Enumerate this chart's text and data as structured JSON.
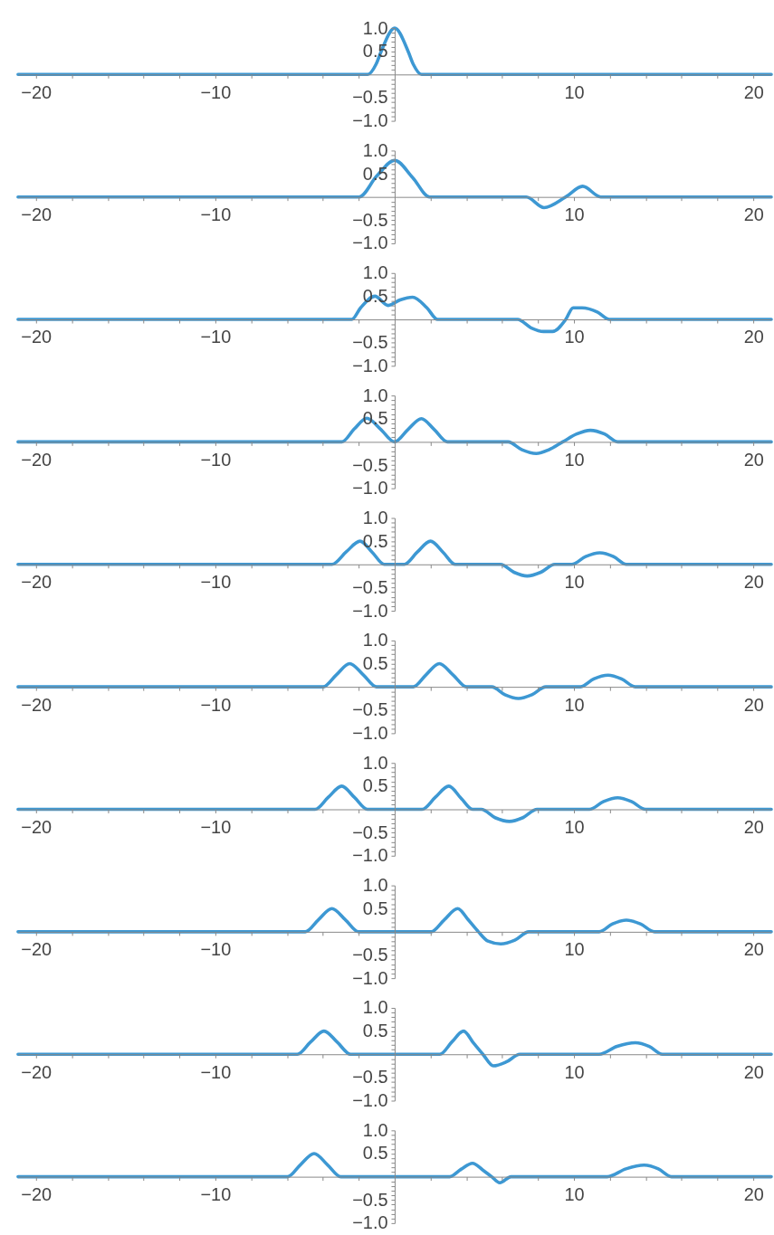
{
  "chart_data": [
    {
      "type": "line",
      "xlim": [
        -21,
        21
      ],
      "ylim": [
        -1,
        1
      ],
      "grid": false,
      "xticks": [
        {
          "value": -20,
          "label": "−20"
        },
        {
          "value": -18,
          "label": null
        },
        {
          "value": -16,
          "label": null
        },
        {
          "value": -14,
          "label": null
        },
        {
          "value": -12,
          "label": null
        },
        {
          "value": -10,
          "label": "−10"
        },
        {
          "value": -8,
          "label": null
        },
        {
          "value": -6,
          "label": null
        },
        {
          "value": -4,
          "label": null
        },
        {
          "value": -2,
          "label": null
        },
        {
          "value": 2,
          "label": null
        },
        {
          "value": 4,
          "label": null
        },
        {
          "value": 6,
          "label": null
        },
        {
          "value": 8,
          "label": null
        },
        {
          "value": 10,
          "label": "10"
        },
        {
          "value": 12,
          "label": null
        },
        {
          "value": 14,
          "label": null
        },
        {
          "value": 16,
          "label": null
        },
        {
          "value": 18,
          "label": null
        },
        {
          "value": 20,
          "label": "20"
        }
      ],
      "yticks": [
        {
          "value": -1,
          "label": "−1.0"
        },
        {
          "value": -0.9,
          "label": null
        },
        {
          "value": -0.8,
          "label": null
        },
        {
          "value": -0.7,
          "label": null
        },
        {
          "value": -0.6,
          "label": null
        },
        {
          "value": -0.5,
          "label": "−0.5"
        },
        {
          "value": -0.4,
          "label": null
        },
        {
          "value": -0.3,
          "label": null
        },
        {
          "value": -0.2,
          "label": null
        },
        {
          "value": -0.1,
          "label": null
        },
        {
          "value": 0.1,
          "label": null
        },
        {
          "value": 0.2,
          "label": null
        },
        {
          "value": 0.3,
          "label": null
        },
        {
          "value": 0.4,
          "label": null
        },
        {
          "value": 0.5,
          "label": "0.5"
        },
        {
          "value": 0.6,
          "label": null
        },
        {
          "value": 0.7,
          "label": null
        },
        {
          "value": 0.8,
          "label": null
        },
        {
          "value": 0.9,
          "label": null
        },
        {
          "value": 1,
          "label": "1.0"
        }
      ],
      "series": [
        {
          "color": "#3d98d3",
          "x": [
            -21,
            -1.5,
            -1.05,
            -0.75,
            0,
            0.75,
            1.05,
            1.5,
            21
          ],
          "values": [
            0,
            0,
            0.21,
            0.5,
            1,
            0.5,
            0.21,
            0,
            0
          ]
        }
      ]
    },
    {
      "type": "line",
      "xlim": [
        -21,
        21
      ],
      "ylim": [
        -1,
        1
      ],
      "grid": false,
      "xticks": [
        {
          "value": -20,
          "label": "−20"
        },
        {
          "value": -18,
          "label": null
        },
        {
          "value": -16,
          "label": null
        },
        {
          "value": -14,
          "label": null
        },
        {
          "value": -12,
          "label": null
        },
        {
          "value": -10,
          "label": "−10"
        },
        {
          "value": -8,
          "label": null
        },
        {
          "value": -6,
          "label": null
        },
        {
          "value": -4,
          "label": null
        },
        {
          "value": -2,
          "label": null
        },
        {
          "value": 2,
          "label": null
        },
        {
          "value": 4,
          "label": null
        },
        {
          "value": 6,
          "label": null
        },
        {
          "value": 8,
          "label": null
        },
        {
          "value": 10,
          "label": "10"
        },
        {
          "value": 12,
          "label": null
        },
        {
          "value": 14,
          "label": null
        },
        {
          "value": 16,
          "label": null
        },
        {
          "value": 18,
          "label": null
        },
        {
          "value": 20,
          "label": "20"
        }
      ],
      "yticks": [
        {
          "value": -1,
          "label": "−1.0"
        },
        {
          "value": -0.9,
          "label": null
        },
        {
          "value": -0.8,
          "label": null
        },
        {
          "value": -0.7,
          "label": null
        },
        {
          "value": -0.6,
          "label": null
        },
        {
          "value": -0.5,
          "label": "−0.5"
        },
        {
          "value": -0.4,
          "label": null
        },
        {
          "value": -0.3,
          "label": null
        },
        {
          "value": -0.2,
          "label": null
        },
        {
          "value": -0.1,
          "label": null
        },
        {
          "value": 0.1,
          "label": null
        },
        {
          "value": 0.2,
          "label": null
        },
        {
          "value": 0.3,
          "label": null
        },
        {
          "value": 0.4,
          "label": null
        },
        {
          "value": 0.5,
          "label": "0.5"
        },
        {
          "value": 0.6,
          "label": null
        },
        {
          "value": 0.7,
          "label": null
        },
        {
          "value": 0.8,
          "label": null
        },
        {
          "value": 0.9,
          "label": null
        },
        {
          "value": 1,
          "label": "1.0"
        }
      ],
      "series": [
        {
          "color": "#3d98d3",
          "x": [
            -21,
            -1.98,
            -1,
            0,
            1,
            1.95,
            7.34,
            8.33,
            9.54,
            10.48,
            11.49,
            21
          ],
          "values": [
            0,
            0,
            0.45,
            0.79,
            0.42,
            0,
            0,
            -0.23,
            0,
            0.23,
            0,
            0
          ]
        }
      ]
    },
    {
      "type": "line",
      "xlim": [
        -21,
        21
      ],
      "ylim": [
        -1,
        1
      ],
      "grid": false,
      "xticks": [
        {
          "value": -20,
          "label": "−20"
        },
        {
          "value": -18,
          "label": null
        },
        {
          "value": -16,
          "label": null
        },
        {
          "value": -14,
          "label": null
        },
        {
          "value": -12,
          "label": null
        },
        {
          "value": -10,
          "label": "−10"
        },
        {
          "value": -8,
          "label": null
        },
        {
          "value": -6,
          "label": null
        },
        {
          "value": -4,
          "label": null
        },
        {
          "value": -2,
          "label": null
        },
        {
          "value": 2,
          "label": null
        },
        {
          "value": 4,
          "label": null
        },
        {
          "value": 6,
          "label": null
        },
        {
          "value": 8,
          "label": null
        },
        {
          "value": 10,
          "label": "10"
        },
        {
          "value": 12,
          "label": null
        },
        {
          "value": 14,
          "label": null
        },
        {
          "value": 16,
          "label": null
        },
        {
          "value": 18,
          "label": null
        },
        {
          "value": 20,
          "label": "20"
        }
      ],
      "yticks": [
        {
          "value": -1,
          "label": "−1.0"
        },
        {
          "value": -0.9,
          "label": null
        },
        {
          "value": -0.8,
          "label": null
        },
        {
          "value": -0.7,
          "label": null
        },
        {
          "value": -0.6,
          "label": null
        },
        {
          "value": -0.5,
          "label": "−0.5"
        },
        {
          "value": -0.4,
          "label": null
        },
        {
          "value": -0.3,
          "label": null
        },
        {
          "value": -0.2,
          "label": null
        },
        {
          "value": -0.1,
          "label": null
        },
        {
          "value": 0.1,
          "label": null
        },
        {
          "value": 0.2,
          "label": null
        },
        {
          "value": 0.3,
          "label": null
        },
        {
          "value": 0.4,
          "label": null
        },
        {
          "value": 0.5,
          "label": "0.5"
        },
        {
          "value": 0.6,
          "label": null
        },
        {
          "value": 0.7,
          "label": null
        },
        {
          "value": 0.8,
          "label": null
        },
        {
          "value": 0.9,
          "label": null
        },
        {
          "value": 1,
          "label": "1.0"
        }
      ],
      "series": [
        {
          "color": "#3d98d3",
          "x": [
            -21,
            -2.39,
            -1.9,
            -1.1,
            -0.36,
            0.3,
            1.0,
            1.8,
            2.39,
            6.85,
            7.6,
            8.3,
            8.8,
            9.54,
            9.95,
            10.45,
            11.3,
            11.98,
            21
          ],
          "values": [
            0,
            0,
            0.25,
            0.5,
            0.3,
            0.42,
            0.48,
            0.25,
            0,
            0,
            -0.18,
            -0.26,
            -0.26,
            0,
            0.25,
            0.25,
            0.16,
            0,
            0
          ]
        }
      ]
    },
    {
      "type": "line",
      "xlim": [
        -21,
        21
      ],
      "ylim": [
        -1,
        1
      ],
      "grid": false,
      "xticks": [
        {
          "value": -20,
          "label": "−20"
        },
        {
          "value": -18,
          "label": null
        },
        {
          "value": -16,
          "label": null
        },
        {
          "value": -14,
          "label": null
        },
        {
          "value": -12,
          "label": null
        },
        {
          "value": -10,
          "label": "−10"
        },
        {
          "value": -8,
          "label": null
        },
        {
          "value": -6,
          "label": null
        },
        {
          "value": -4,
          "label": null
        },
        {
          "value": -2,
          "label": null
        },
        {
          "value": 2,
          "label": null
        },
        {
          "value": 4,
          "label": null
        },
        {
          "value": 6,
          "label": null
        },
        {
          "value": 8,
          "label": null
        },
        {
          "value": 10,
          "label": "10"
        },
        {
          "value": 12,
          "label": null
        },
        {
          "value": 14,
          "label": null
        },
        {
          "value": 16,
          "label": null
        },
        {
          "value": 18,
          "label": null
        },
        {
          "value": 20,
          "label": "20"
        }
      ],
      "yticks": [
        {
          "value": -1,
          "label": "−1.0"
        },
        {
          "value": -0.9,
          "label": null
        },
        {
          "value": -0.8,
          "label": null
        },
        {
          "value": -0.7,
          "label": null
        },
        {
          "value": -0.6,
          "label": null
        },
        {
          "value": -0.5,
          "label": "−0.5"
        },
        {
          "value": -0.4,
          "label": null
        },
        {
          "value": -0.3,
          "label": null
        },
        {
          "value": -0.2,
          "label": null
        },
        {
          "value": -0.1,
          "label": null
        },
        {
          "value": 0.1,
          "label": null
        },
        {
          "value": 0.2,
          "label": null
        },
        {
          "value": 0.3,
          "label": null
        },
        {
          "value": 0.4,
          "label": null
        },
        {
          "value": 0.5,
          "label": "0.5"
        },
        {
          "value": 0.6,
          "label": null
        },
        {
          "value": 0.7,
          "label": null
        },
        {
          "value": 0.8,
          "label": null
        },
        {
          "value": 0.9,
          "label": null
        },
        {
          "value": 1,
          "label": "1.0"
        }
      ],
      "series": [
        {
          "color": "#3d98d3",
          "x": [
            -21,
            -2.95,
            -2.25,
            -1.55,
            -0.8,
            0,
            0.75,
            1.49,
            2.2,
            2.94,
            6.32,
            7.1,
            7.89,
            8.6,
            9.37,
            10.15,
            10.91,
            11.7,
            12.43,
            21
          ],
          "values": [
            0,
            0,
            0.28,
            0.51,
            0.28,
            0,
            0.27,
            0.5,
            0.27,
            0,
            0,
            -0.17,
            -0.25,
            -0.17,
            0,
            0.17,
            0.25,
            0.17,
            0,
            0
          ]
        }
      ]
    },
    {
      "type": "line",
      "xlim": [
        -21,
        21
      ],
      "ylim": [
        -1,
        1
      ],
      "grid": false,
      "xticks": [
        {
          "value": -20,
          "label": "−20"
        },
        {
          "value": -18,
          "label": null
        },
        {
          "value": -16,
          "label": null
        },
        {
          "value": -14,
          "label": null
        },
        {
          "value": -12,
          "label": null
        },
        {
          "value": -10,
          "label": "−10"
        },
        {
          "value": -8,
          "label": null
        },
        {
          "value": -6,
          "label": null
        },
        {
          "value": -4,
          "label": null
        },
        {
          "value": -2,
          "label": null
        },
        {
          "value": 2,
          "label": null
        },
        {
          "value": 4,
          "label": null
        },
        {
          "value": 6,
          "label": null
        },
        {
          "value": 8,
          "label": null
        },
        {
          "value": 10,
          "label": "10"
        },
        {
          "value": 12,
          "label": null
        },
        {
          "value": 14,
          "label": null
        },
        {
          "value": 16,
          "label": null
        },
        {
          "value": 18,
          "label": null
        },
        {
          "value": 20,
          "label": "20"
        }
      ],
      "yticks": [
        {
          "value": -1,
          "label": "−1.0"
        },
        {
          "value": -0.9,
          "label": null
        },
        {
          "value": -0.8,
          "label": null
        },
        {
          "value": -0.7,
          "label": null
        },
        {
          "value": -0.6,
          "label": null
        },
        {
          "value": -0.5,
          "label": "−0.5"
        },
        {
          "value": -0.4,
          "label": null
        },
        {
          "value": -0.3,
          "label": null
        },
        {
          "value": -0.2,
          "label": null
        },
        {
          "value": -0.1,
          "label": null
        },
        {
          "value": 0.1,
          "label": null
        },
        {
          "value": 0.2,
          "label": null
        },
        {
          "value": 0.3,
          "label": null
        },
        {
          "value": 0.4,
          "label": null
        },
        {
          "value": 0.5,
          "label": "0.5"
        },
        {
          "value": 0.6,
          "label": null
        },
        {
          "value": 0.7,
          "label": null
        },
        {
          "value": 0.8,
          "label": null
        },
        {
          "value": 0.9,
          "label": null
        },
        {
          "value": 1,
          "label": "1.0"
        }
      ],
      "series": [
        {
          "color": "#3d98d3",
          "x": [
            -21,
            -3.5,
            -2.7,
            -1.93,
            -1.25,
            -0.58,
            0.54,
            1.25,
            2.0,
            2.7,
            3.38,
            5.9,
            6.65,
            7.39,
            8.15,
            8.93,
            9.87,
            10.65,
            11.44,
            12.2,
            12.92,
            21
          ],
          "values": [
            0,
            0,
            0.27,
            0.5,
            0.26,
            0,
            0,
            0.26,
            0.5,
            0.26,
            0,
            0,
            -0.17,
            -0.25,
            -0.17,
            0,
            0,
            0.17,
            0.25,
            0.17,
            0,
            0
          ]
        }
      ]
    },
    {
      "type": "line",
      "xlim": [
        -21,
        21
      ],
      "ylim": [
        -1,
        1
      ],
      "grid": false,
      "xticks": [
        {
          "value": -20,
          "label": "−20"
        },
        {
          "value": -18,
          "label": null
        },
        {
          "value": -16,
          "label": null
        },
        {
          "value": -14,
          "label": null
        },
        {
          "value": -12,
          "label": null
        },
        {
          "value": -10,
          "label": "−10"
        },
        {
          "value": -8,
          "label": null
        },
        {
          "value": -6,
          "label": null
        },
        {
          "value": -4,
          "label": null
        },
        {
          "value": -2,
          "label": null
        },
        {
          "value": 2,
          "label": null
        },
        {
          "value": 4,
          "label": null
        },
        {
          "value": 6,
          "label": null
        },
        {
          "value": 8,
          "label": null
        },
        {
          "value": 10,
          "label": "10"
        },
        {
          "value": 12,
          "label": null
        },
        {
          "value": 14,
          "label": null
        },
        {
          "value": 16,
          "label": null
        },
        {
          "value": 18,
          "label": null
        },
        {
          "value": 20,
          "label": "20"
        }
      ],
      "yticks": [
        {
          "value": -1,
          "label": "−1.0"
        },
        {
          "value": -0.9,
          "label": null
        },
        {
          "value": -0.8,
          "label": null
        },
        {
          "value": -0.7,
          "label": null
        },
        {
          "value": -0.6,
          "label": null
        },
        {
          "value": -0.5,
          "label": "−0.5"
        },
        {
          "value": -0.4,
          "label": null
        },
        {
          "value": -0.3,
          "label": null
        },
        {
          "value": -0.2,
          "label": null
        },
        {
          "value": -0.1,
          "label": null
        },
        {
          "value": 0.1,
          "label": null
        },
        {
          "value": 0.2,
          "label": null
        },
        {
          "value": 0.3,
          "label": null
        },
        {
          "value": 0.4,
          "label": null
        },
        {
          "value": 0.5,
          "label": "0.5"
        },
        {
          "value": 0.6,
          "label": null
        },
        {
          "value": 0.7,
          "label": null
        },
        {
          "value": 0.8,
          "label": null
        },
        {
          "value": 0.9,
          "label": null
        },
        {
          "value": 1,
          "label": "1.0"
        }
      ],
      "series": [
        {
          "color": "#3d98d3",
          "x": [
            -21,
            -3.99,
            -3.25,
            -2.51,
            -1.75,
            -1.02,
            1.04,
            1.75,
            2.49,
            3.25,
            4.01,
            5.41,
            6.15,
            6.9,
            7.65,
            8.43,
            10.36,
            11.1,
            11.9,
            12.65,
            13.42,
            21
          ],
          "values": [
            0,
            0,
            0.26,
            0.5,
            0.26,
            0,
            0,
            0.26,
            0.5,
            0.26,
            0,
            0,
            -0.17,
            -0.25,
            -0.17,
            0,
            0,
            0.17,
            0.25,
            0.17,
            0,
            0
          ]
        }
      ]
    },
    {
      "type": "line",
      "xlim": [
        -21,
        21
      ],
      "ylim": [
        -1,
        1
      ],
      "grid": false,
      "xticks": [
        {
          "value": -20,
          "label": "−20"
        },
        {
          "value": -18,
          "label": null
        },
        {
          "value": -16,
          "label": null
        },
        {
          "value": -14,
          "label": null
        },
        {
          "value": -12,
          "label": null
        },
        {
          "value": -10,
          "label": "−10"
        },
        {
          "value": -8,
          "label": null
        },
        {
          "value": -6,
          "label": null
        },
        {
          "value": -4,
          "label": null
        },
        {
          "value": -2,
          "label": null
        },
        {
          "value": 2,
          "label": null
        },
        {
          "value": 4,
          "label": null
        },
        {
          "value": 6,
          "label": null
        },
        {
          "value": 8,
          "label": null
        },
        {
          "value": 10,
          "label": "10"
        },
        {
          "value": 12,
          "label": null
        },
        {
          "value": 14,
          "label": null
        },
        {
          "value": 16,
          "label": null
        },
        {
          "value": 18,
          "label": null
        },
        {
          "value": 20,
          "label": "20"
        }
      ],
      "yticks": [
        {
          "value": -1,
          "label": "−1.0"
        },
        {
          "value": -0.9,
          "label": null
        },
        {
          "value": -0.8,
          "label": null
        },
        {
          "value": -0.7,
          "label": null
        },
        {
          "value": -0.6,
          "label": null
        },
        {
          "value": -0.5,
          "label": "−0.5"
        },
        {
          "value": -0.4,
          "label": null
        },
        {
          "value": -0.3,
          "label": null
        },
        {
          "value": -0.2,
          "label": null
        },
        {
          "value": -0.1,
          "label": null
        },
        {
          "value": 0.1,
          "label": null
        },
        {
          "value": 0.2,
          "label": null
        },
        {
          "value": 0.3,
          "label": null
        },
        {
          "value": 0.4,
          "label": null
        },
        {
          "value": 0.5,
          "label": "0.5"
        },
        {
          "value": 0.6,
          "label": null
        },
        {
          "value": 0.7,
          "label": null
        },
        {
          "value": 0.8,
          "label": null
        },
        {
          "value": 0.9,
          "label": null
        },
        {
          "value": 1,
          "label": "1.0"
        }
      ],
      "series": [
        {
          "color": "#3d98d3",
          "x": [
            -21,
            -4.44,
            -3.7,
            -2.95,
            -2.25,
            -1.52,
            1.53,
            2.27,
            3.02,
            3.7,
            4.34,
            4.83,
            5.6,
            6.4,
            7.15,
            7.94,
            10.86,
            11.65,
            12.43,
            13.2,
            13.99,
            21
          ],
          "values": [
            0,
            0,
            0.26,
            0.5,
            0.26,
            0,
            0,
            0.26,
            0.5,
            0.24,
            0,
            0,
            -0.18,
            -0.26,
            -0.18,
            0,
            0,
            0.17,
            0.25,
            0.17,
            0,
            0
          ]
        }
      ]
    },
    {
      "type": "line",
      "xlim": [
        -21,
        21
      ],
      "ylim": [
        -1,
        1
      ],
      "grid": false,
      "xticks": [
        {
          "value": -20,
          "label": "−20"
        },
        {
          "value": -18,
          "label": null
        },
        {
          "value": -16,
          "label": null
        },
        {
          "value": -14,
          "label": null
        },
        {
          "value": -12,
          "label": null
        },
        {
          "value": -10,
          "label": "−10"
        },
        {
          "value": -8,
          "label": null
        },
        {
          "value": -6,
          "label": null
        },
        {
          "value": -4,
          "label": null
        },
        {
          "value": -2,
          "label": null
        },
        {
          "value": 2,
          "label": null
        },
        {
          "value": 4,
          "label": null
        },
        {
          "value": 6,
          "label": null
        },
        {
          "value": 8,
          "label": null
        },
        {
          "value": 10,
          "label": "10"
        },
        {
          "value": 12,
          "label": null
        },
        {
          "value": 14,
          "label": null
        },
        {
          "value": 16,
          "label": null
        },
        {
          "value": 18,
          "label": null
        },
        {
          "value": 20,
          "label": "20"
        }
      ],
      "yticks": [
        {
          "value": -1,
          "label": "−1.0"
        },
        {
          "value": -0.9,
          "label": null
        },
        {
          "value": -0.8,
          "label": null
        },
        {
          "value": -0.7,
          "label": null
        },
        {
          "value": -0.6,
          "label": null
        },
        {
          "value": -0.5,
          "label": "−0.5"
        },
        {
          "value": -0.4,
          "label": null
        },
        {
          "value": -0.3,
          "label": null
        },
        {
          "value": -0.2,
          "label": null
        },
        {
          "value": -0.1,
          "label": null
        },
        {
          "value": 0.1,
          "label": null
        },
        {
          "value": 0.2,
          "label": null
        },
        {
          "value": 0.3,
          "label": null
        },
        {
          "value": 0.4,
          "label": null
        },
        {
          "value": 0.5,
          "label": "0.5"
        },
        {
          "value": 0.6,
          "label": null
        },
        {
          "value": 0.7,
          "label": null
        },
        {
          "value": 0.8,
          "label": null
        },
        {
          "value": 0.9,
          "label": null
        },
        {
          "value": 1,
          "label": "1.0"
        }
      ],
      "series": [
        {
          "color": "#3d98d3",
          "x": [
            -21,
            -4.98,
            -4.25,
            -3.5,
            -2.75,
            -2.01,
            2.03,
            2.77,
            3.51,
            4.1,
            4.67,
            5.2,
            5.91,
            6.7,
            7.48,
            11.4,
            12.15,
            12.92,
            13.7,
            14.49,
            21
          ],
          "values": [
            0,
            0,
            0.26,
            0.5,
            0.26,
            0,
            0,
            0.26,
            0.5,
            0.26,
            0,
            -0.2,
            -0.26,
            -0.18,
            0,
            0,
            0.17,
            0.25,
            0.17,
            0,
            0
          ]
        }
      ]
    },
    {
      "type": "line",
      "xlim": [
        -21,
        21
      ],
      "ylim": [
        -1,
        1
      ],
      "grid": false,
      "xticks": [
        {
          "value": -20,
          "label": "−20"
        },
        {
          "value": -18,
          "label": null
        },
        {
          "value": -16,
          "label": null
        },
        {
          "value": -14,
          "label": null
        },
        {
          "value": -12,
          "label": null
        },
        {
          "value": -10,
          "label": "−10"
        },
        {
          "value": -8,
          "label": null
        },
        {
          "value": -6,
          "label": null
        },
        {
          "value": -4,
          "label": null
        },
        {
          "value": -2,
          "label": null
        },
        {
          "value": 2,
          "label": null
        },
        {
          "value": 4,
          "label": null
        },
        {
          "value": 6,
          "label": null
        },
        {
          "value": 8,
          "label": null
        },
        {
          "value": 10,
          "label": "10"
        },
        {
          "value": 12,
          "label": null
        },
        {
          "value": 14,
          "label": null
        },
        {
          "value": 16,
          "label": null
        },
        {
          "value": 18,
          "label": null
        },
        {
          "value": 20,
          "label": "20"
        }
      ],
      "yticks": [
        {
          "value": -1,
          "label": "−1.0"
        },
        {
          "value": -0.9,
          "label": null
        },
        {
          "value": -0.8,
          "label": null
        },
        {
          "value": -0.7,
          "label": null
        },
        {
          "value": -0.6,
          "label": null
        },
        {
          "value": -0.5,
          "label": "−0.5"
        },
        {
          "value": -0.4,
          "label": null
        },
        {
          "value": -0.3,
          "label": null
        },
        {
          "value": -0.2,
          "label": null
        },
        {
          "value": -0.1,
          "label": null
        },
        {
          "value": 0.1,
          "label": null
        },
        {
          "value": 0.2,
          "label": null
        },
        {
          "value": 0.3,
          "label": null
        },
        {
          "value": 0.4,
          "label": null
        },
        {
          "value": 0.5,
          "label": "0.5"
        },
        {
          "value": 0.6,
          "label": null
        },
        {
          "value": 0.7,
          "label": null
        },
        {
          "value": 0.8,
          "label": null
        },
        {
          "value": 0.9,
          "label": null
        },
        {
          "value": 1,
          "label": "1.0"
        }
      ],
      "series": [
        {
          "color": "#3d98d3",
          "x": [
            -21,
            -5.43,
            -4.7,
            -3.94,
            -3.2,
            -2.46,
            2.52,
            3.2,
            3.84,
            4.4,
            4.92,
            5.5,
            6.25,
            6.98,
            11.4,
            12.4,
            13.42,
            14.2,
            14.93,
            21
          ],
          "values": [
            0,
            0,
            0.26,
            0.5,
            0.26,
            0,
            0,
            0.27,
            0.5,
            0.24,
            0,
            -0.25,
            -0.16,
            0,
            0,
            0.17,
            0.25,
            0.17,
            0,
            0
          ]
        }
      ]
    },
    {
      "type": "line",
      "xlim": [
        -21,
        21
      ],
      "ylim": [
        -1,
        1
      ],
      "grid": false,
      "xticks": [
        {
          "value": -20,
          "label": "−20"
        },
        {
          "value": -18,
          "label": null
        },
        {
          "value": -16,
          "label": null
        },
        {
          "value": -14,
          "label": null
        },
        {
          "value": -12,
          "label": null
        },
        {
          "value": -10,
          "label": "−10"
        },
        {
          "value": -8,
          "label": null
        },
        {
          "value": -6,
          "label": null
        },
        {
          "value": -4,
          "label": null
        },
        {
          "value": -2,
          "label": null
        },
        {
          "value": 2,
          "label": null
        },
        {
          "value": 4,
          "label": null
        },
        {
          "value": 6,
          "label": null
        },
        {
          "value": 8,
          "label": null
        },
        {
          "value": 10,
          "label": "10"
        },
        {
          "value": 12,
          "label": null
        },
        {
          "value": 14,
          "label": null
        },
        {
          "value": 16,
          "label": null
        },
        {
          "value": 18,
          "label": null
        },
        {
          "value": 20,
          "label": "20"
        }
      ],
      "yticks": [
        {
          "value": -1,
          "label": "−1.0"
        },
        {
          "value": -0.9,
          "label": null
        },
        {
          "value": -0.8,
          "label": null
        },
        {
          "value": -0.7,
          "label": null
        },
        {
          "value": -0.6,
          "label": null
        },
        {
          "value": -0.5,
          "label": "−0.5"
        },
        {
          "value": -0.4,
          "label": null
        },
        {
          "value": -0.3,
          "label": null
        },
        {
          "value": -0.2,
          "label": null
        },
        {
          "value": -0.1,
          "label": null
        },
        {
          "value": 0.1,
          "label": null
        },
        {
          "value": 0.2,
          "label": null
        },
        {
          "value": 0.3,
          "label": null
        },
        {
          "value": 0.4,
          "label": null
        },
        {
          "value": 0.5,
          "label": "0.5"
        },
        {
          "value": 0.6,
          "label": null
        },
        {
          "value": 0.7,
          "label": null
        },
        {
          "value": 0.8,
          "label": null
        },
        {
          "value": 0.9,
          "label": null
        },
        {
          "value": 1,
          "label": "1.0"
        }
      ],
      "series": [
        {
          "color": "#3d98d3",
          "x": [
            -21,
            -5.97,
            -5.25,
            -4.49,
            -3.75,
            -3.0,
            3.07,
            3.7,
            4.34,
            4.9,
            5.41,
            5.86,
            6.49,
            11.85,
            12.9,
            13.91,
            14.7,
            15.43,
            21
          ],
          "values": [
            0,
            0,
            0.26,
            0.5,
            0.26,
            0,
            0,
            0.16,
            0.29,
            0.15,
            0,
            -0.13,
            0,
            0,
            0.17,
            0.25,
            0.17,
            0,
            0
          ]
        }
      ]
    }
  ]
}
